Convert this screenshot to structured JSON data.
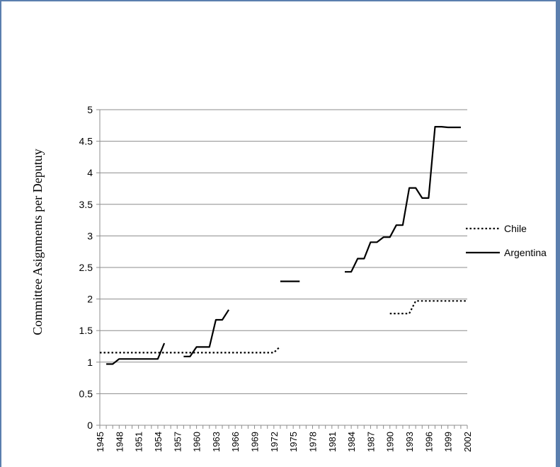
{
  "chart_data": {
    "type": "line",
    "title": "",
    "xlabel": "",
    "ylabel": "Committee Asignments per Deputuy",
    "ylim": [
      0,
      5
    ],
    "yticks": [
      0,
      0.5,
      1,
      1.5,
      2,
      2.5,
      3,
      3.5,
      4,
      4.5,
      5
    ],
    "ytick_labels": [
      "0",
      "0.5",
      "1",
      "1.5",
      "2",
      "2.5",
      "3",
      "3.5",
      "4",
      "4.5",
      "5"
    ],
    "xlim": [
      1945,
      2002
    ],
    "xticks": [
      1945,
      1948,
      1951,
      1954,
      1957,
      1960,
      1963,
      1966,
      1969,
      1972,
      1975,
      1978,
      1981,
      1984,
      1987,
      1990,
      1993,
      1996,
      1999,
      2002
    ],
    "grid": "horizontal",
    "legend_position": "right",
    "series": [
      {
        "name": "Chile",
        "style": "dotted",
        "color": "#000000",
        "segments": [
          [
            [
              1945,
              1.15
            ],
            [
              1972,
              1.15
            ],
            [
              1973,
              1.25
            ]
          ],
          [
            [
              1990,
              1.77
            ],
            [
              1993,
              1.77
            ],
            [
              1994,
              1.97
            ],
            [
              2002,
              1.97
            ]
          ]
        ]
      },
      {
        "name": "Argentina",
        "style": "solid",
        "color": "#000000",
        "segments": [
          [
            [
              1946,
              0.97
            ],
            [
              1947,
              0.97
            ],
            [
              1948,
              1.05
            ],
            [
              1954,
              1.05
            ],
            [
              1955,
              1.3
            ]
          ],
          [
            [
              1958,
              1.09
            ],
            [
              1959,
              1.09
            ],
            [
              1960,
              1.24
            ],
            [
              1962,
              1.24
            ],
            [
              1963,
              1.67
            ],
            [
              1964,
              1.67
            ],
            [
              1965,
              1.83
            ]
          ],
          [
            [
              1973,
              2.28
            ],
            [
              1976,
              2.28
            ]
          ],
          [
            [
              1983,
              2.43
            ],
            [
              1984,
              2.43
            ],
            [
              1985,
              2.64
            ],
            [
              1986,
              2.64
            ],
            [
              1987,
              2.9
            ],
            [
              1988,
              2.9
            ],
            [
              1989,
              2.98
            ],
            [
              1990,
              2.98
            ],
            [
              1991,
              3.17
            ],
            [
              1992,
              3.17
            ],
            [
              1993,
              3.76
            ],
            [
              1994,
              3.76
            ],
            [
              1995,
              3.6
            ],
            [
              1996,
              3.6
            ],
            [
              1997,
              4.73
            ],
            [
              1998,
              4.73
            ],
            [
              1999,
              4.72
            ],
            [
              2001,
              4.72
            ]
          ]
        ]
      }
    ]
  }
}
